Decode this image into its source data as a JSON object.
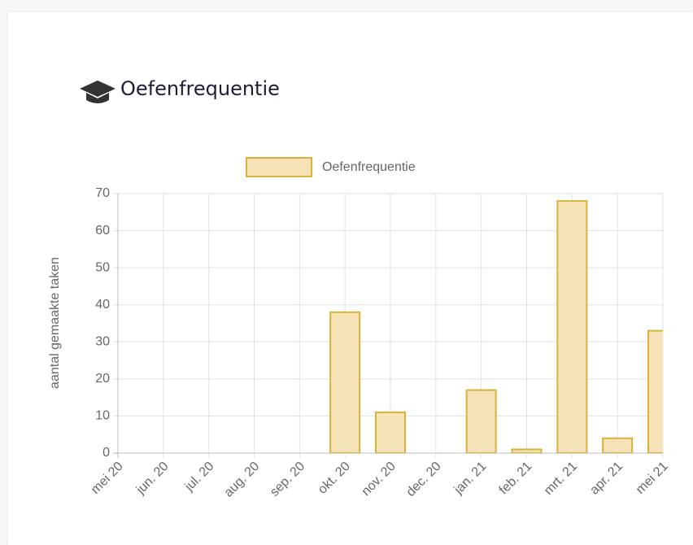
{
  "card": {
    "title": "Oefenfrequentie"
  },
  "chart_data": {
    "type": "bar",
    "categories": [
      "mei 20",
      "jun. 20",
      "jul. 20",
      "aug. 20",
      "sep. 20",
      "okt. 20",
      "nov. 20",
      "dec. 20",
      "jan. 21",
      "feb. 21",
      "mrt. 21",
      "apr. 21",
      "mei 21"
    ],
    "series": [
      {
        "name": "Oefenfrequentie",
        "color": "#d9b23a",
        "fill": "#f5e2b6",
        "values": [
          0,
          0,
          0,
          0,
          0,
          38,
          11,
          0,
          17,
          1,
          68,
          4,
          33
        ]
      }
    ],
    "y_label": "aantal gemaakte taken",
    "ylim": [
      0,
      70
    ],
    "yticks": [
      0,
      10,
      20,
      30,
      40,
      50,
      60,
      70
    ],
    "grid": true,
    "legend": "top"
  }
}
